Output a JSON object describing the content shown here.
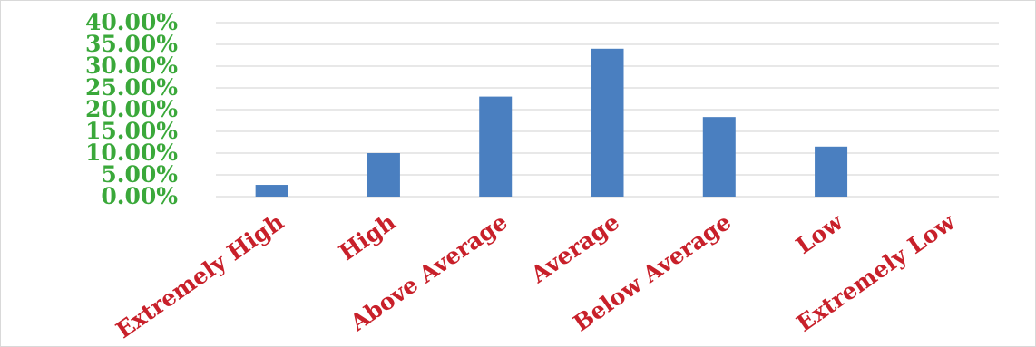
{
  "chart_data": {
    "type": "bar",
    "categories": [
      "Extremely High",
      "High",
      "Above Average",
      "Average",
      "Below Average",
      "Low",
      "Extremely Low"
    ],
    "series": [
      {
        "values": [
          2.7,
          10.0,
          23.0,
          34.0,
          18.3,
          11.5,
          0.0
        ]
      }
    ],
    "y_tick_labels": [
      "0.00%",
      "5.00%",
      "10.00%",
      "15.00%",
      "20.00%",
      "25.00%",
      "30.00%",
      "35.00%",
      "40.00%"
    ],
    "ylim": [
      0,
      40
    ],
    "y_unit": "%",
    "grid": true,
    "legend": "none",
    "title": "",
    "xlabel": "",
    "ylabel": "",
    "colors": {
      "bar": "#4a7fc0",
      "y_tick_text": "#3aa83a",
      "x_tick_text": "#c8202a",
      "grid": "#d9d9d9"
    }
  }
}
